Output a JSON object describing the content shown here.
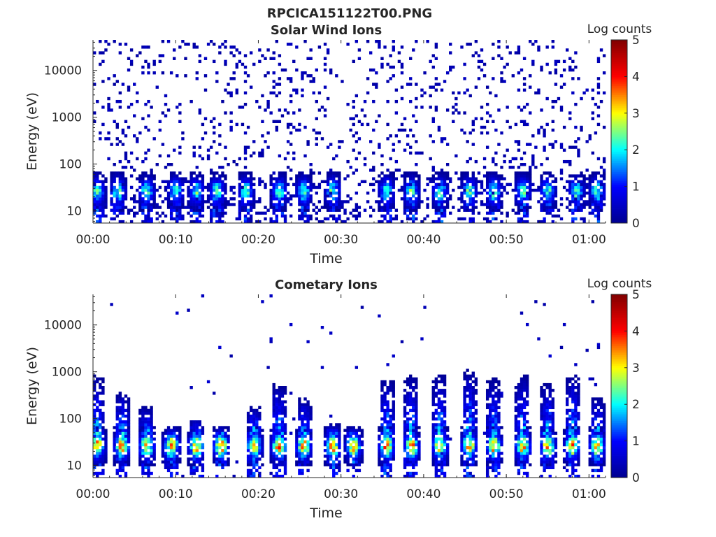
{
  "figure": {
    "title": "RPCICA151122T00.PNG"
  },
  "colormap": {
    "name": "jet",
    "stops": [
      "#00008f",
      "#0000ff",
      "#00ffff",
      "#ffff00",
      "#ff0000",
      "#800000"
    ]
  },
  "chart_data": [
    {
      "type": "heatmap",
      "title": "Solar Wind Ions",
      "xlabel": "Time",
      "ylabel": "Energy (eV)",
      "yscale": "log",
      "xlim": [
        "00:00",
        "01:02"
      ],
      "ylim": [
        5.5,
        45000
      ],
      "x_tick_labels": [
        "00:00",
        "00:10",
        "00:20",
        "00:30",
        "00:40",
        "00:50",
        "01:00"
      ],
      "y_tick_labels": [
        "10",
        "100",
        "1000",
        "10000"
      ],
      "colorbar": {
        "label": "Log counts",
        "range": [
          0,
          5
        ],
        "tick_labels": [
          "0",
          "1",
          "2",
          "3",
          "4",
          "5"
        ]
      },
      "grid": false,
      "pattern": {
        "description_values": "sparse scattered counts at all energies; dense band near 20-40 eV",
        "bursts_minutes": [
          0.5,
          3,
          6.5,
          10,
          12.5,
          15,
          18.5,
          22.5,
          25.5,
          29,
          35.5,
          38.5,
          42,
          45.5,
          48.5,
          52,
          55,
          58.5,
          61
        ],
        "band_energy_eV": [
          15,
          45
        ],
        "peak_log_counts": 2.6,
        "background_log_counts": 0.3
      }
    },
    {
      "type": "heatmap",
      "title": "Cometary Ions",
      "xlabel": "Time",
      "ylabel": "Energy (eV)",
      "yscale": "log",
      "xlim": [
        "00:00",
        "01:02"
      ],
      "ylim": [
        5.5,
        45000
      ],
      "x_tick_labels": [
        "00:00",
        "00:10",
        "00:20",
        "00:30",
        "00:40",
        "00:50",
        "01:00"
      ],
      "y_tick_labels": [
        "10",
        "100",
        "1000",
        "10000"
      ],
      "colorbar": {
        "label": "Log counts",
        "range": [
          0,
          5
        ],
        "tick_labels": [
          "0",
          "1",
          "2",
          "3",
          "4",
          "5"
        ]
      },
      "grid": false,
      "pattern": {
        "bursts_minutes": [
          0.5,
          3.5,
          6.5,
          9.5,
          12.5,
          15.5,
          19.5,
          22.5,
          25.5,
          29,
          31.5,
          35.5,
          38.5,
          42,
          45.5,
          48.5,
          52,
          55,
          58,
          61
        ],
        "band_energy_eV": [
          15,
          45
        ],
        "plume_top_eV": [
          900,
          400,
          200,
          60,
          100,
          60,
          200,
          600,
          300,
          80,
          60,
          800,
          900,
          1000,
          1200,
          800,
          900,
          600,
          1000,
          300
        ],
        "peak_log_counts": 3.9,
        "background_log_counts": 0.4
      }
    }
  ]
}
